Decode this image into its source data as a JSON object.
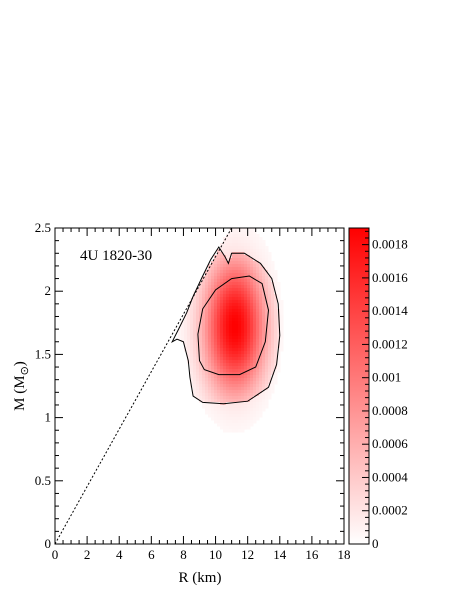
{
  "chart_data": {
    "type": "heatmap",
    "annotation": "4U 1820-30",
    "xlabel": "R (km)",
    "ylabel": "M (M",
    "ylabel_sub": "⊙",
    "ylabel_close": ")",
    "xlim": [
      0,
      18
    ],
    "ylim": [
      0,
      2.5
    ],
    "x_ticks": [
      0,
      2,
      4,
      6,
      8,
      10,
      12,
      14,
      16,
      18
    ],
    "y_ticks": [
      0,
      0.5,
      1,
      1.5,
      2,
      2.5
    ],
    "x_tick_labels": [
      "0",
      "2",
      "4",
      "6",
      "8",
      "10",
      "12",
      "14",
      "16",
      "18"
    ],
    "y_tick_labels": [
      "0",
      "0.5",
      "1",
      "1.5",
      "2",
      "2.5"
    ],
    "colorbar": {
      "range": [
        0,
        0.0019
      ],
      "ticks": [
        0,
        0.0002,
        0.0004,
        0.0006,
        0.0008,
        0.001,
        0.0012,
        0.0014,
        0.0016,
        0.0018
      ],
      "tick_labels": [
        "0",
        "0.0002",
        "0.0004",
        "0.0006",
        "0.0008",
        "0.001",
        "0.0012",
        "0.0014",
        "0.0016",
        "0.0018"
      ],
      "color_low": "#ffffff",
      "color_high": "#ff0000"
    },
    "peak": {
      "R": 11.2,
      "M": 1.72,
      "value": 0.0019
    },
    "limit_line": {
      "points": [
        [
          0,
          0
        ],
        [
          11,
          2.5
        ]
      ],
      "style": "dotted"
    },
    "contours": [
      {
        "level": "inner",
        "points": [
          [
            9.0,
            1.45
          ],
          [
            9.3,
            1.38
          ],
          [
            10.2,
            1.34
          ],
          [
            11.5,
            1.34
          ],
          [
            12.5,
            1.4
          ],
          [
            13.1,
            1.6
          ],
          [
            13.3,
            1.85
          ],
          [
            12.9,
            2.06
          ],
          [
            12.1,
            2.12
          ],
          [
            11.0,
            2.1
          ],
          [
            10.0,
            2.01
          ],
          [
            9.2,
            1.86
          ],
          [
            8.9,
            1.66
          ],
          [
            9.0,
            1.45
          ]
        ]
      },
      {
        "level": "outer",
        "points": [
          [
            8.3,
            1.45
          ],
          [
            8.4,
            1.32
          ],
          [
            8.6,
            1.17
          ],
          [
            9.2,
            1.12
          ],
          [
            10.5,
            1.11
          ],
          [
            12.0,
            1.13
          ],
          [
            13.3,
            1.24
          ],
          [
            13.8,
            1.42
          ],
          [
            14.0,
            1.65
          ],
          [
            13.9,
            1.9
          ],
          [
            13.5,
            2.1
          ],
          [
            12.8,
            2.22
          ],
          [
            11.8,
            2.3
          ],
          [
            11.0,
            2.3
          ],
          [
            10.8,
            2.22
          ],
          [
            10.6,
            2.27
          ],
          [
            10.2,
            2.35
          ],
          [
            9.7,
            2.25
          ],
          [
            9.2,
            2.12
          ],
          [
            8.6,
            1.96
          ],
          [
            8.2,
            1.83
          ],
          [
            7.7,
            1.7
          ],
          [
            7.3,
            1.6
          ],
          [
            7.6,
            1.62
          ],
          [
            8.0,
            1.6
          ],
          [
            8.3,
            1.45
          ]
        ]
      }
    ]
  }
}
